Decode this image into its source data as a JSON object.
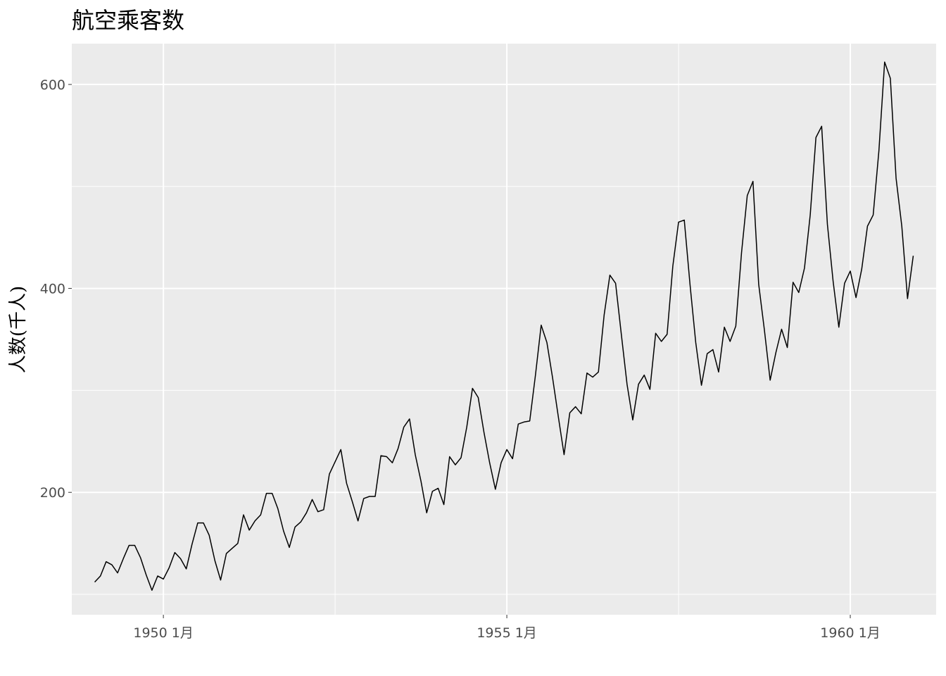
{
  "chart_data": {
    "type": "line",
    "title": "航空乘客数",
    "xlabel": "",
    "ylabel": "人数(千人)",
    "x_ticks": [
      "1950 1月",
      "1955 1月",
      "1960 1月"
    ],
    "y_ticks": [
      "200",
      "400",
      "600"
    ],
    "xlim": [
      "1948-09",
      "1961-04"
    ],
    "ylim": [
      80,
      640
    ],
    "grid": true,
    "background": "#ebebeb",
    "grid_color": "#ffffff",
    "line_color": "#000000",
    "series": [
      {
        "x_start": "1949-01",
        "frequency": "monthly",
        "values": [
          112,
          118,
          132,
          129,
          121,
          135,
          148,
          148,
          136,
          119,
          104,
          118,
          115,
          126,
          141,
          135,
          125,
          149,
          170,
          170,
          158,
          133,
          114,
          140,
          145,
          150,
          178,
          163,
          172,
          178,
          199,
          199,
          184,
          162,
          146,
          166,
          171,
          180,
          193,
          181,
          183,
          218,
          230,
          242,
          209,
          191,
          172,
          194,
          196,
          196,
          236,
          235,
          229,
          243,
          264,
          272,
          237,
          211,
          180,
          201,
          204,
          188,
          235,
          227,
          234,
          264,
          302,
          293,
          259,
          229,
          203,
          229,
          242,
          233,
          267,
          269,
          270,
          315,
          364,
          347,
          312,
          274,
          237,
          278,
          284,
          277,
          317,
          313,
          318,
          374,
          413,
          405,
          355,
          306,
          271,
          306,
          315,
          301,
          356,
          348,
          355,
          422,
          465,
          467,
          404,
          347,
          305,
          336,
          340,
          318,
          362,
          348,
          363,
          435,
          491,
          505,
          404,
          359,
          310,
          337,
          360,
          342,
          406,
          396,
          420,
          472,
          548,
          559,
          463,
          407,
          362,
          405,
          417,
          391,
          419,
          461,
          472,
          535,
          622,
          606,
          508,
          461,
          390,
          432
        ]
      }
    ]
  }
}
